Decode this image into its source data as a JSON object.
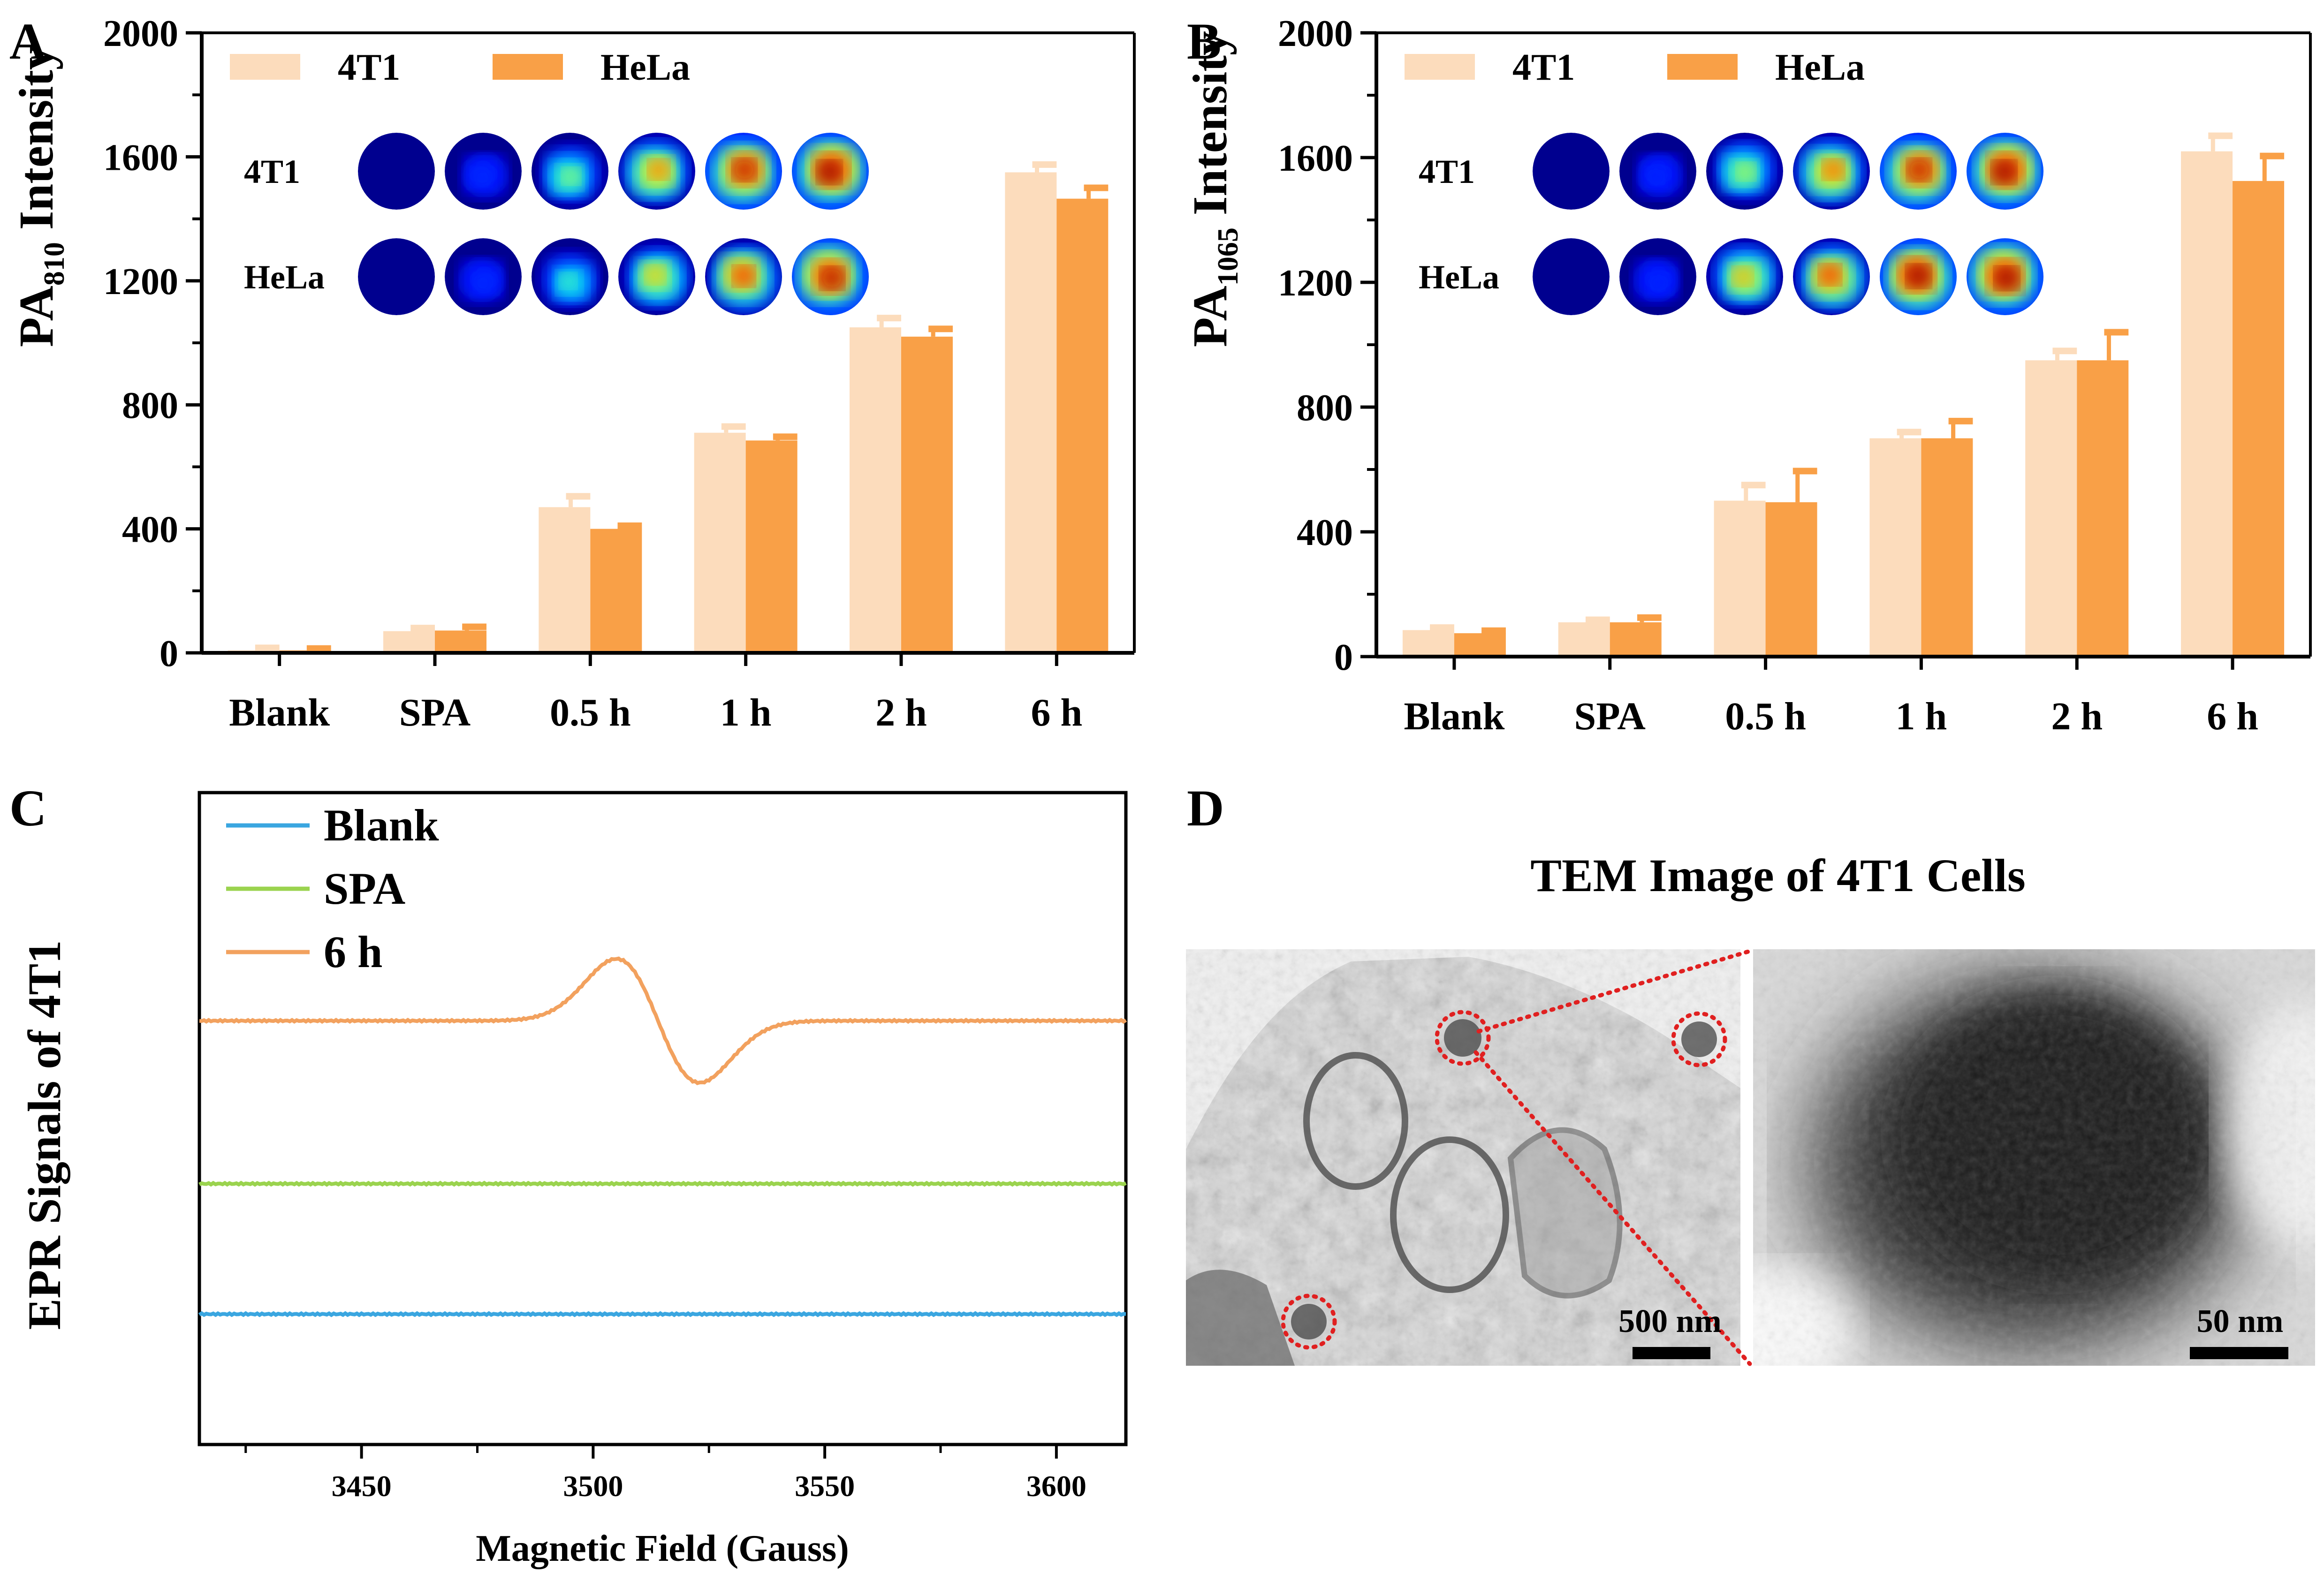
{
  "colors": {
    "series_4T1": "#fcdcbc",
    "series_HeLa": "#f9a047",
    "epr_blank": "#3aa6e0",
    "epr_spa": "#9ad34e",
    "epr_6h": "#f2a15e",
    "circle_marker": "#e02020"
  },
  "panels": {
    "A": {
      "letter": "A"
    },
    "B": {
      "letter": "B"
    },
    "C": {
      "letter": "C"
    },
    "D": {
      "letter": "D"
    }
  },
  "chart_data": [
    {
      "panel": "A",
      "type": "bar",
      "ylabel_main": "PA",
      "ylabel_sub": "810",
      "ylabel_tail": " Intensity",
      "categories": [
        "Blank",
        "SPA",
        "0.5 h",
        "1 h",
        "2 h",
        "6 h"
      ],
      "series": [
        {
          "name": "4T1",
          "values": [
            8,
            70,
            470,
            710,
            1050,
            1550
          ],
          "errors": [
            8,
            10,
            35,
            20,
            30,
            25
          ]
        },
        {
          "name": "HeLa",
          "values": [
            8,
            72,
            400,
            685,
            1020,
            1465
          ],
          "errors": [
            6,
            12,
            10,
            12,
            25,
            35
          ]
        }
      ],
      "ylim": [
        0,
        2000
      ],
      "yticks": [
        "0",
        "400",
        "800",
        "1200",
        "1600",
        "2000"
      ],
      "legend_position": "top-left",
      "inset": {
        "row_labels": [
          "4T1",
          "HeLa"
        ],
        "intensity": [
          [
            0.0,
            0.04,
            0.45,
            0.72,
            0.92,
            1.0
          ],
          [
            0.0,
            0.04,
            0.35,
            0.62,
            0.8,
            0.95
          ]
        ]
      }
    },
    {
      "panel": "B",
      "type": "bar",
      "ylabel_main": "PA",
      "ylabel_sub": "1065",
      "ylabel_tail": " Intensity",
      "categories": [
        "Blank",
        "SPA",
        "0.5 h",
        "1 h",
        "2 h",
        "6 h"
      ],
      "series": [
        {
          "name": "4T1",
          "values": [
            85,
            110,
            500,
            700,
            950,
            1620
          ],
          "errors": [
            8,
            8,
            50,
            20,
            30,
            50
          ]
        },
        {
          "name": "HeLa",
          "values": [
            75,
            110,
            495,
            700,
            950,
            1525
          ],
          "errors": [
            8,
            15,
            100,
            55,
            90,
            80
          ]
        }
      ],
      "ylim": [
        0,
        2000
      ],
      "yticks": [
        "0",
        "400",
        "800",
        "1200",
        "1600",
        "2000"
      ],
      "legend_position": "top-left",
      "inset": {
        "row_labels": [
          "4T1",
          "HeLa"
        ],
        "intensity": [
          [
            0.0,
            0.03,
            0.5,
            0.75,
            0.92,
            1.0
          ],
          [
            0.0,
            0.03,
            0.65,
            0.8,
            1.0,
            1.0
          ]
        ]
      }
    },
    {
      "panel": "C",
      "type": "line",
      "xlabel": "Magnetic Field (Gauss)",
      "ylabel": "EPR Signals of 4T1",
      "xlim": [
        3415,
        3615
      ],
      "xticks": [
        "3450",
        "3500",
        "3550",
        "3600"
      ],
      "series": [
        {
          "name": "Blank",
          "baseline": 0.2,
          "amplitude": 0
        },
        {
          "name": "SPA",
          "baseline": 0.4,
          "amplitude": 0
        },
        {
          "name": "6 h",
          "baseline": 0.65,
          "amplitude": 1,
          "center": 3514,
          "width": 9
        }
      ],
      "legend_position": "top-left"
    }
  ],
  "tem": {
    "title": "TEM Image of 4T1 Cells",
    "left_scale": "500 nm",
    "right_scale": "50 nm"
  }
}
